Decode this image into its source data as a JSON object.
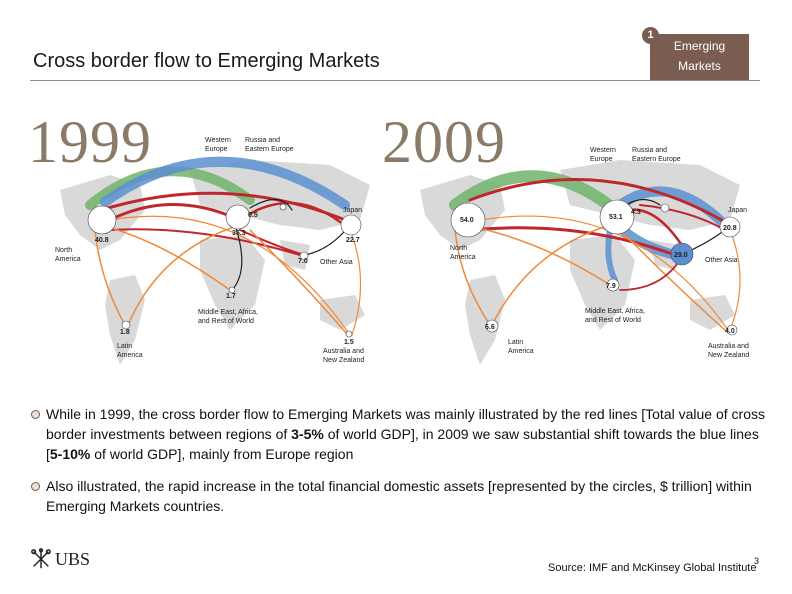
{
  "header": {
    "title": "Cross border flow to Emerging Markets",
    "badge_number": "1",
    "badge_line1": "Emerging",
    "badge_line2": "Markets"
  },
  "map_1999": {
    "year": "1999",
    "labels": {
      "western_europe": [
        "Western",
        "Europe"
      ],
      "russia": [
        "Russia and",
        "Eastern Europe"
      ],
      "japan": "Japan",
      "north_america": [
        "North",
        "America"
      ],
      "other_asia": "Other Asia",
      "middle_east": [
        "Middle East, Africa,",
        "and Rest of World"
      ],
      "latin_america": [
        "Latin",
        "America"
      ],
      "australia": [
        "Australia and",
        "New Zealand"
      ]
    },
    "values": {
      "north_america": "40.8",
      "western_europe": "35.3",
      "russia": "0.5",
      "japan": "22.7",
      "other_asia": "7.0",
      "middle_east": "1.7",
      "latin_america": "1.8",
      "australia": "1.5"
    }
  },
  "map_2009": {
    "year": "2009",
    "labels": {
      "western_europe": [
        "Western",
        "Europe"
      ],
      "russia": [
        "Russia and",
        "Eastern Europe"
      ],
      "japan": "Japan",
      "north_america": [
        "North",
        "America"
      ],
      "other_asia": "Other Asia",
      "middle_east": [
        "Middle East, Africa,",
        "and Rest of World"
      ],
      "latin_america": [
        "Latin",
        "America"
      ],
      "australia": [
        "Australia and",
        "New Zealand"
      ]
    },
    "values": {
      "north_america": "54.0",
      "western_europe": "53.1",
      "russia": "4.3",
      "japan": "20.8",
      "other_asia": "29.0",
      "middle_east": "7.9",
      "latin_america": "6.6",
      "australia": "4.0"
    }
  },
  "bullets": {
    "b1_part1": "While in 1999, the cross border flow to Emerging Markets was mainly illustrated by the red lines [Total value of cross border investments between regions of ",
    "b1_bold1": "3-5%",
    "b1_part2": " of world GDP], in 2009 we saw substantial shift towards the blue lines [",
    "b1_bold2": "5-10%",
    "b1_part3": " of world GDP], mainly from Europe region",
    "b2": "Also illustrated, the rapid increase in the total financial domestic assets [represented by the circles, $ trillion] within Emerging Markets countries."
  },
  "footer": {
    "logo_text": "UBS",
    "source": "Source: IMF and McKinsey Global Institute",
    "page_number": "3"
  },
  "colors": {
    "badge": "#7a5c50",
    "year_text": "#8a7a67",
    "flow_red": "#c0272d",
    "flow_blue": "#5b8fd0",
    "flow_green": "#6fb36a",
    "flow_orange": "#ee8a3c",
    "land": "#d9d9d9"
  }
}
